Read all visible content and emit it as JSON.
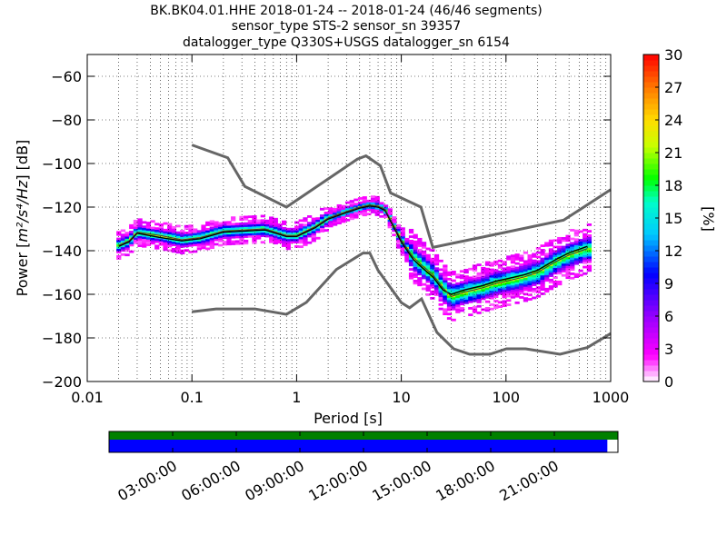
{
  "chart_data": {
    "type": "heatmap",
    "title_lines": [
      "BK.BK04.01.HHE   2018-01-24 -- 2018-01-24  (46/46 segments)",
      "sensor_type STS-2 sensor_sn 39357",
      "datalogger_type Q330S+USGS datalogger_sn 6154"
    ],
    "xlabel": "Period [s]",
    "ylabel_prefix": "Power [",
    "ylabel_unit": "m²/s⁴/Hz",
    "ylabel_suffix": "] [dB]",
    "x_scale": "log",
    "xlim": [
      0.01,
      1000
    ],
    "ylim": [
      -200,
      -50
    ],
    "x_ticks": [
      0.01,
      0.1,
      1,
      10,
      100,
      1000
    ],
    "x_tick_labels": [
      "0.01",
      "0.1",
      "1",
      "10",
      "100",
      "1000"
    ],
    "y_ticks": [
      -200,
      -180,
      -160,
      -140,
      -120,
      -100,
      -80,
      -60
    ],
    "y_tick_labels": [
      "−200",
      "−180",
      "−160",
      "−140",
      "−120",
      "−100",
      "−80",
      "−60"
    ],
    "grid": true,
    "colorbar": {
      "label": "[%]",
      "range": [
        0,
        30
      ],
      "ticks": [
        0,
        3,
        6,
        9,
        12,
        15,
        18,
        21,
        24,
        27,
        30
      ],
      "tick_labels": [
        "0",
        "3",
        "6",
        "9",
        "12",
        "15",
        "18",
        "21",
        "24",
        "27",
        "30"
      ],
      "colormap": "pqlx"
    },
    "noise_models": {
      "nhnm": [
        [
          0.1,
          -91.5
        ],
        [
          0.22,
          -97.4
        ],
        [
          0.32,
          -110.5
        ],
        [
          0.8,
          -120
        ],
        [
          3.8,
          -98
        ],
        [
          4.6,
          -96.5
        ],
        [
          6.3,
          -101
        ],
        [
          7.9,
          -113.5
        ],
        [
          15.4,
          -120
        ],
        [
          20,
          -138.5
        ],
        [
          354.8,
          -126
        ],
        [
          1000,
          -112
        ]
      ],
      "nlnm": [
        [
          0.1,
          -168
        ],
        [
          0.17,
          -166.7
        ],
        [
          0.4,
          -166.7
        ],
        [
          0.8,
          -169.2
        ],
        [
          1.24,
          -163.7
        ],
        [
          2.4,
          -148.6
        ],
        [
          4.3,
          -141.1
        ],
        [
          5,
          -141.1
        ],
        [
          6,
          -149
        ],
        [
          10,
          -163.8
        ],
        [
          12,
          -166.2
        ],
        [
          15.6,
          -162.1
        ],
        [
          21.9,
          -177.5
        ],
        [
          31.6,
          -185
        ],
        [
          45,
          -187.5
        ],
        [
          70,
          -187.5
        ],
        [
          101,
          -185
        ],
        [
          154,
          -185
        ],
        [
          328,
          -187.5
        ],
        [
          600,
          -184.4
        ],
        [
          1000,
          -178
        ]
      ]
    },
    "mode_line": [
      [
        0.02,
        -137.5
      ],
      [
        0.025,
        -135.5
      ],
      [
        0.03,
        -131.5
      ],
      [
        0.05,
        -133
      ],
      [
        0.08,
        -135
      ],
      [
        0.12,
        -134
      ],
      [
        0.2,
        -131
      ],
      [
        0.5,
        -130
      ],
      [
        0.8,
        -133
      ],
      [
        1,
        -133
      ],
      [
        1.5,
        -129
      ],
      [
        2,
        -125
      ],
      [
        3,
        -122
      ],
      [
        4,
        -120
      ],
      [
        5,
        -119
      ],
      [
        6,
        -119.5
      ],
      [
        7,
        -121
      ],
      [
        10,
        -135
      ],
      [
        13,
        -143
      ],
      [
        16,
        -147
      ],
      [
        20,
        -151
      ],
      [
        25,
        -157
      ],
      [
        30,
        -161
      ],
      [
        40,
        -159
      ],
      [
        60,
        -157
      ],
      [
        80,
        -155
      ],
      [
        100,
        -154
      ],
      [
        150,
        -152
      ],
      [
        200,
        -150
      ],
      [
        300,
        -145
      ],
      [
        400,
        -142
      ],
      [
        600,
        -139
      ]
    ],
    "mean_line": [
      [
        0.02,
        -138
      ],
      [
        0.025,
        -136
      ],
      [
        0.03,
        -132
      ],
      [
        0.05,
        -134
      ],
      [
        0.08,
        -135.5
      ],
      [
        0.12,
        -134.5
      ],
      [
        0.2,
        -131.5
      ],
      [
        0.5,
        -130.5
      ],
      [
        0.8,
        -133.5
      ],
      [
        1,
        -133.5
      ],
      [
        1.5,
        -129.5
      ],
      [
        2,
        -125.5
      ],
      [
        3,
        -122.5
      ],
      [
        4,
        -120.5
      ],
      [
        5,
        -119.5
      ],
      [
        6,
        -120
      ],
      [
        7,
        -121.5
      ],
      [
        10,
        -136
      ],
      [
        13,
        -144
      ],
      [
        16,
        -148
      ],
      [
        20,
        -152
      ],
      [
        25,
        -158
      ],
      [
        30,
        -160
      ],
      [
        40,
        -158
      ],
      [
        60,
        -156
      ],
      [
        80,
        -154
      ],
      [
        100,
        -153
      ],
      [
        150,
        -151
      ],
      [
        200,
        -149
      ],
      [
        300,
        -144
      ],
      [
        400,
        -141
      ],
      [
        600,
        -138
      ]
    ],
    "time_axis": {
      "tick_labels": [
        "03:00:00",
        "06:00:00",
        "09:00:00",
        "12:00:00",
        "15:00:00",
        "18:00:00",
        "21:00:00"
      ],
      "tick_hours": [
        3,
        6,
        9,
        12,
        15,
        18,
        21
      ],
      "range_hours": [
        0,
        24
      ],
      "data_coverage_hours": [
        0,
        23.5
      ],
      "coverage_colors": {
        "data": "#0000ff",
        "gaps": "#ffffff",
        "top_strip": "#008000"
      }
    }
  }
}
